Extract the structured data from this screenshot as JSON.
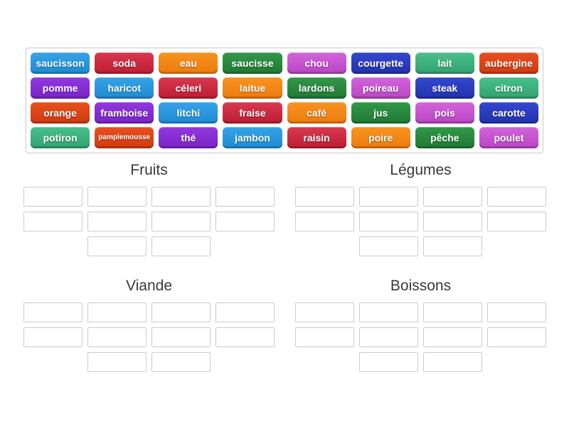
{
  "page": {
    "background": "#ffffff"
  },
  "palette": {
    "blue": {
      "top": "#36a3e9",
      "bottom": "#1e8bd2"
    },
    "red": {
      "top": "#d93950",
      "bottom": "#bd1d33"
    },
    "orange": {
      "top": "#f7941f",
      "bottom": "#ed7a0e"
    },
    "green": {
      "top": "#33984a",
      "bottom": "#1f7a33"
    },
    "orchid": {
      "top": "#d264da",
      "bottom": "#b944c5"
    },
    "indigo": {
      "top": "#3347cf",
      "bottom": "#2232ae"
    },
    "seagreen": {
      "top": "#48c08c",
      "bottom": "#32a270"
    },
    "orangered": {
      "top": "#e85020",
      "bottom": "#cf3a0e"
    },
    "purple": {
      "top": "#9138e0",
      "bottom": "#7a23c6"
    }
  },
  "word_bank": {
    "columns": 8,
    "tiles": [
      {
        "label": "saucisson",
        "color": "blue"
      },
      {
        "label": "soda",
        "color": "red"
      },
      {
        "label": "eau",
        "color": "orange"
      },
      {
        "label": "saucisse",
        "color": "green"
      },
      {
        "label": "chou",
        "color": "orchid"
      },
      {
        "label": "courgette",
        "color": "indigo"
      },
      {
        "label": "lait",
        "color": "seagreen"
      },
      {
        "label": "aubergine",
        "color": "orangered"
      },
      {
        "label": "pomme",
        "color": "purple"
      },
      {
        "label": "haricot",
        "color": "blue"
      },
      {
        "label": "céleri",
        "color": "red"
      },
      {
        "label": "laitue",
        "color": "orange"
      },
      {
        "label": "lardons",
        "color": "green"
      },
      {
        "label": "poireau",
        "color": "orchid"
      },
      {
        "label": "steak",
        "color": "indigo"
      },
      {
        "label": "citron",
        "color": "seagreen"
      },
      {
        "label": "orange",
        "color": "orangered"
      },
      {
        "label": "framboise",
        "color": "purple"
      },
      {
        "label": "litchi",
        "color": "blue"
      },
      {
        "label": "fraise",
        "color": "red"
      },
      {
        "label": "café",
        "color": "orange"
      },
      {
        "label": "jus",
        "color": "green"
      },
      {
        "label": "pois",
        "color": "orchid"
      },
      {
        "label": "carotte",
        "color": "indigo"
      },
      {
        "label": "potiron",
        "color": "seagreen"
      },
      {
        "label": "pamplemousse",
        "color": "orangered",
        "small": true
      },
      {
        "label": "thé",
        "color": "purple"
      },
      {
        "label": "jambon",
        "color": "blue"
      },
      {
        "label": "raisin",
        "color": "red"
      },
      {
        "label": "poire",
        "color": "orange"
      },
      {
        "label": "pêche",
        "color": "green"
      },
      {
        "label": "poulet",
        "color": "orchid"
      }
    ]
  },
  "groups": [
    {
      "title": "Fruits",
      "slot_rows": [
        4,
        4,
        2
      ]
    },
    {
      "title": "Légumes",
      "slot_rows": [
        4,
        4,
        2
      ]
    },
    {
      "title": "Viande",
      "slot_rows": [
        4,
        4,
        2
      ]
    },
    {
      "title": "Boissons",
      "slot_rows": [
        4,
        4,
        2
      ]
    }
  ]
}
